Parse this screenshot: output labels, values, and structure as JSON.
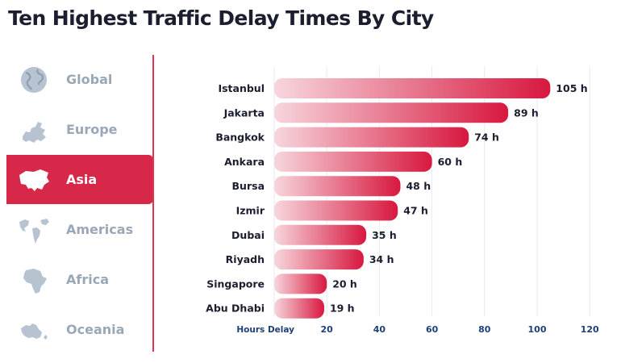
{
  "title": "Ten Highest Traffic Delay Times By City",
  "sidebar": {
    "items": [
      {
        "label": "Global",
        "icon": "globe-icon",
        "active": false
      },
      {
        "label": "Europe",
        "icon": "europe-map-icon",
        "active": false
      },
      {
        "label": "Asia",
        "icon": "asia-map-icon",
        "active": true
      },
      {
        "label": "Americas",
        "icon": "americas-map-icon",
        "active": false
      },
      {
        "label": "Africa",
        "icon": "africa-map-icon",
        "active": false
      },
      {
        "label": "Oceania",
        "icon": "oceania-map-icon",
        "active": false
      }
    ]
  },
  "colors": {
    "accent": "#d8284a",
    "bar_dark": "#d8183f",
    "bar_light": "#f7d6dd",
    "inactive_text": "#9aa7b6",
    "title_text": "#1b1e2e",
    "axis_text": "#1e3f78"
  },
  "chart_data": {
    "type": "bar",
    "orientation": "horizontal",
    "categories": [
      "Istanbul",
      "Jakarta",
      "Bangkok",
      "Ankara",
      "Bursa",
      "Izmir",
      "Dubai",
      "Riyadh",
      "Singapore",
      "Abu Dhabi"
    ],
    "values": [
      105,
      89,
      74,
      60,
      48,
      47,
      35,
      34,
      20,
      19
    ],
    "value_labels": [
      "105 h",
      "89 h",
      "74 h",
      "60 h",
      "48 h",
      "47 h",
      "35 h",
      "34 h",
      "20 h",
      "19 h"
    ],
    "xlabel": "Hours Delay",
    "x_ticks": [
      20,
      40,
      60,
      80,
      100,
      120
    ],
    "xlim": [
      0,
      120
    ],
    "grid": true
  }
}
